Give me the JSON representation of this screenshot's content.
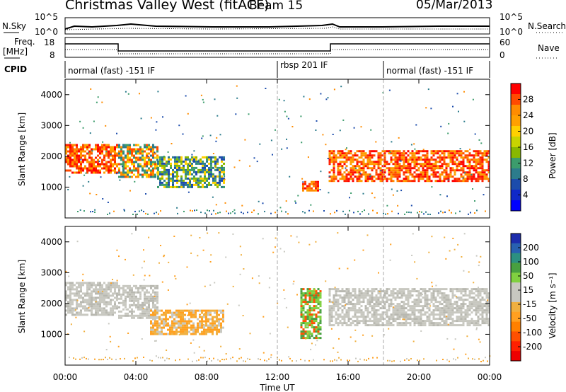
{
  "header": {
    "site": "Christmas Valley West (fitACF)",
    "beam": "Beam 15",
    "date": "05/Mar/2013"
  },
  "sky_panel": {
    "left_label": "N.Sky",
    "right_label": "N.Search",
    "left_ticks": [
      "10^5",
      "10^0"
    ],
    "right_ticks": [
      "10^5",
      "10^0"
    ]
  },
  "freq_panel": {
    "left_label_1": "Freq.",
    "left_label_2": "[MHz]",
    "right_label": "Nave",
    "left_ticks": [
      "18",
      "8"
    ],
    "right_ticks": [
      "60",
      "0"
    ]
  },
  "cpid": {
    "label": "CPID",
    "segments": [
      {
        "text": "normal (fast) -151 IF",
        "start_hour": 0
      },
      {
        "text": "rbsp 201 IF",
        "start_hour": 12
      },
      {
        "text": "normal (fast) -151 IF",
        "start_hour": 18
      }
    ]
  },
  "power_panel": {
    "ylabel": "Slant Range [km]",
    "yticks": [
      1000,
      2000,
      3000,
      4000
    ],
    "colorbar_label": "Power [dB]",
    "colorbar_ticks": [
      "28",
      "24",
      "20",
      "16",
      "12",
      "8",
      "4"
    ],
    "colorbar_colors": [
      "#ff0000",
      "#ff4a00",
      "#ff8c00",
      "#ffa000",
      "#ffd000",
      "#c8d400",
      "#88b800",
      "#3c9c6c",
      "#2c7c8c",
      "#1c4cac",
      "#0f28c8",
      "#0000ff"
    ]
  },
  "velocity_panel": {
    "ylabel": "Slant Range [km]",
    "yticks": [
      1000,
      2000,
      3000,
      4000
    ],
    "colorbar_label": "Velocity [m s⁻¹]",
    "colorbar_ticks": [
      "200",
      "100",
      "50",
      "15",
      "-15",
      "-50",
      "-100",
      "-200"
    ],
    "colorbar_colors": [
      "#1c2cac",
      "#2860b0",
      "#2c9080",
      "#48a040",
      "#80d040",
      "#c8c8c0",
      "#c8c8c0",
      "#f0b040",
      "#ffa020",
      "#ff8000",
      "#ff5000",
      "#ff2000",
      "#ee0000"
    ]
  },
  "xaxis": {
    "label": "Time UT",
    "ticks": [
      "00:00",
      "04:00",
      "08:00",
      "12:00",
      "16:00",
      "20:00",
      "00:00"
    ]
  },
  "chart_data": {
    "type": "heatmap",
    "x_unit": "hours UT",
    "xlim": [
      0,
      24
    ],
    "ylim": [
      0,
      4500
    ],
    "power_bands": [
      {
        "t0": 0.0,
        "t1": 3.0,
        "r0": 1500,
        "r1": 2400,
        "level": "high"
      },
      {
        "t0": 3.0,
        "t1": 5.2,
        "r0": 1300,
        "r1": 2400,
        "level": "medium"
      },
      {
        "t0": 5.2,
        "t1": 9.0,
        "r0": 1000,
        "r1": 2000,
        "level": "low"
      },
      {
        "t0": 13.4,
        "t1": 14.3,
        "r0": 900,
        "r1": 1200,
        "level": "high"
      },
      {
        "t0": 14.9,
        "t1": 24.0,
        "r0": 1200,
        "r1": 2200,
        "level": "high"
      }
    ],
    "velocity_bands": [
      {
        "t0": 0.0,
        "t1": 3.0,
        "r0": 1600,
        "r1": 2700,
        "class": "low"
      },
      {
        "t0": 3.0,
        "t1": 5.2,
        "r0": 1500,
        "r1": 2600,
        "class": "low"
      },
      {
        "t0": 4.8,
        "t1": 9.0,
        "r0": 1000,
        "r1": 1800,
        "class": "negative"
      },
      {
        "t0": 13.3,
        "t1": 14.5,
        "r0": 900,
        "r1": 2500,
        "class": "positive"
      },
      {
        "t0": 14.9,
        "t1": 24.0,
        "r0": 1300,
        "r1": 2500,
        "class": "low"
      }
    ]
  }
}
